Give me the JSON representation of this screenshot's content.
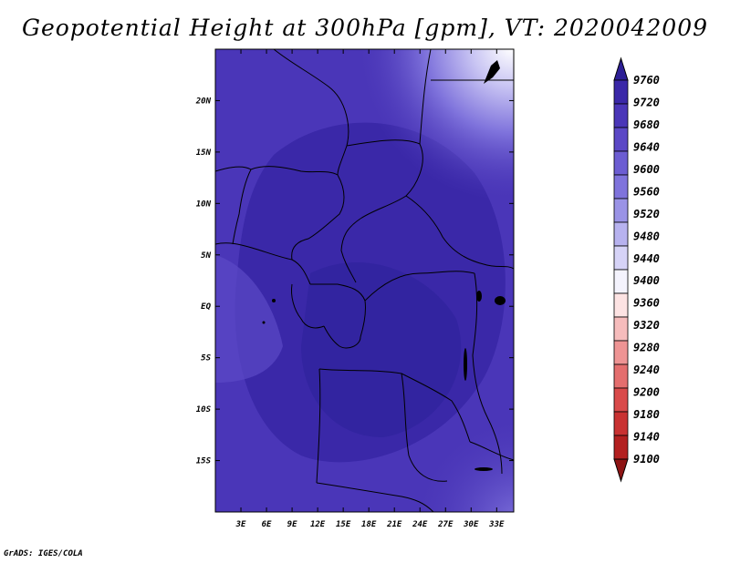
{
  "title": "Geopotential Height at 300hPa [gpm], VT: 2020042009",
  "credit": "GrADS: IGES/COLA",
  "map": {
    "lon_range": [
      0,
      35
    ],
    "lat_range": [
      -20,
      25
    ],
    "lon_ticks": [
      "3E",
      "6E",
      "9E",
      "12E",
      "15E",
      "18E",
      "21E",
      "24E",
      "27E",
      "30E",
      "33E"
    ],
    "lat_ticks": [
      "20N",
      "15N",
      "10N",
      "5N",
      "EQ",
      "5S",
      "10S",
      "15S"
    ]
  },
  "colorbar": {
    "levels": [
      "9760",
      "9720",
      "9680",
      "9640",
      "9600",
      "9560",
      "9520",
      "9480",
      "9440",
      "9400",
      "9360",
      "9320",
      "9280",
      "9240",
      "9200",
      "9180",
      "9140",
      "9100"
    ],
    "colors": [
      "#2d1f96",
      "#3a28a8",
      "#4a36b8",
      "#5b48c6",
      "#6c5dd2",
      "#7f73dc",
      "#9a93e6",
      "#b7b2ef",
      "#d6d3f7",
      "#f4f3fd",
      "#fde3e3",
      "#f6bcbc",
      "#ee9494",
      "#e46e6e",
      "#d94a4a",
      "#c93232",
      "#b32020",
      "#8e1414"
    ]
  }
}
